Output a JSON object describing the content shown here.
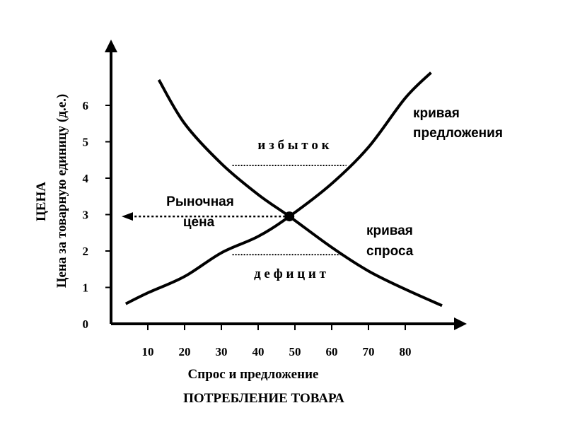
{
  "chart_data": {
    "type": "line",
    "title": "",
    "xlabel": "Спрос и предложение",
    "xlabel_secondary": "ПОТРЕБЛЕНИЕ ТОВАРА",
    "ylabel": "Цена за товарную единицу (д.е.)",
    "ylabel_secondary": "ЦЕНА",
    "x_ticks": [
      "10",
      "20",
      "30",
      "40",
      "50",
      "60",
      "70",
      "80"
    ],
    "y_ticks": [
      "0",
      "1",
      "2",
      "3",
      "4",
      "5",
      "6"
    ],
    "xlim": [
      0,
      95
    ],
    "ylim": [
      0,
      7.2
    ],
    "grid": false,
    "series": [
      {
        "name": "кривая предложения",
        "points": [
          [
            4,
            0.55
          ],
          [
            10,
            0.85
          ],
          [
            20,
            1.3
          ],
          [
            30,
            1.95
          ],
          [
            40,
            2.4
          ],
          [
            48.5,
            2.95
          ],
          [
            60,
            3.85
          ],
          [
            70,
            4.85
          ],
          [
            80,
            6.2
          ],
          [
            87,
            6.9
          ]
        ]
      },
      {
        "name": "кривая спроса",
        "points": [
          [
            13,
            6.7
          ],
          [
            20,
            5.5
          ],
          [
            30,
            4.4
          ],
          [
            40,
            3.55
          ],
          [
            48.5,
            2.95
          ],
          [
            60,
            2.1
          ],
          [
            70,
            1.45
          ],
          [
            80,
            0.95
          ],
          [
            90,
            0.5
          ]
        ]
      }
    ],
    "equilibrium": {
      "x": 48.5,
      "y": 2.95
    },
    "annotations": {
      "surplus": "и з б ы т о к",
      "deficit": "д е ф и ц и т",
      "market_price_line1": "Рыночная",
      "market_price_line2": "цена",
      "supply_line1": "кривая",
      "supply_line2": "предложения",
      "demand_line1": "кривая",
      "demand_line2": "спроса"
    },
    "surplus_level": {
      "y": 4.35,
      "x_from": 33,
      "x_to": 64
    },
    "deficit_level": {
      "y": 1.9,
      "x_from": 33,
      "x_to": 63
    }
  }
}
